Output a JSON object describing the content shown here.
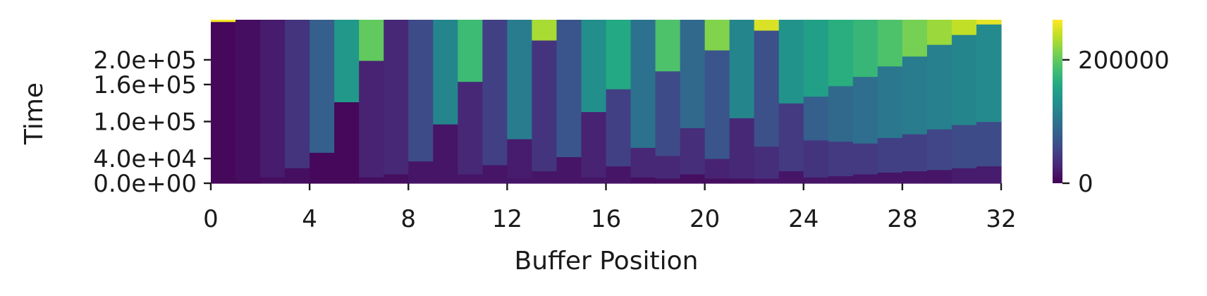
{
  "chart_data": {
    "type": "heatmap",
    "title": "",
    "xlabel": "Buffer Position",
    "ylabel": "Time",
    "x_range": [
      0,
      32
    ],
    "y_range": [
      0,
      265000
    ],
    "x_ticks": [
      0,
      4,
      8,
      12,
      16,
      20,
      24,
      28,
      32
    ],
    "x_tick_labels": [
      "0",
      "4",
      "8",
      "12",
      "16",
      "20",
      "24",
      "28",
      "32"
    ],
    "y_ticks": [
      0,
      40000,
      100000,
      160000,
      200000
    ],
    "y_tick_labels": [
      "0.0e+00",
      "4.0e+04",
      "1.0e+05",
      "1.6e+05",
      "2.0e+05"
    ],
    "colorbar": {
      "colormap": "viridis",
      "range": [
        0,
        265000
      ],
      "ticks": [
        0,
        200000
      ],
      "tick_labels": [
        "0",
        "200000"
      ]
    },
    "grid": false,
    "bands_note": "Each column is a buffer position; segments are [y_start, y_end, value] in data units.",
    "columns": [
      [
        [
          0,
          262000,
          5000
        ],
        [
          262000,
          265000,
          262000
        ]
      ],
      [
        [
          0,
          4000,
          5000
        ],
        [
          4000,
          265000,
          10000
        ]
      ],
      [
        [
          0,
          10000,
          10000
        ],
        [
          10000,
          265000,
          20000
        ]
      ],
      [
        [
          0,
          25000,
          10000
        ],
        [
          25000,
          265000,
          40000
        ]
      ],
      [
        [
          0,
          50000,
          5000
        ],
        [
          50000,
          265000,
          80000
        ]
      ],
      [
        [
          0,
          132000,
          5000
        ],
        [
          132000,
          265000,
          140000
        ]
      ],
      [
        [
          0,
          10000,
          10000
        ],
        [
          10000,
          199000,
          25000
        ],
        [
          199000,
          265000,
          200000
        ]
      ],
      [
        [
          0,
          15000,
          10000
        ],
        [
          15000,
          265000,
          30000
        ]
      ],
      [
        [
          0,
          36000,
          15000
        ],
        [
          36000,
          265000,
          60000
        ]
      ],
      [
        [
          0,
          96000,
          15000
        ],
        [
          96000,
          265000,
          120000
        ]
      ],
      [
        [
          0,
          15000,
          15000
        ],
        [
          15000,
          165000,
          30000
        ],
        [
          165000,
          265000,
          180000
        ]
      ],
      [
        [
          0,
          30000,
          15000
        ],
        [
          30000,
          265000,
          50000
        ]
      ],
      [
        [
          0,
          8000,
          15000
        ],
        [
          8000,
          72000,
          20000
        ],
        [
          72000,
          265000,
          110000
        ]
      ],
      [
        [
          0,
          20000,
          15000
        ],
        [
          20000,
          232000,
          40000
        ],
        [
          232000,
          265000,
          230000
        ]
      ],
      [
        [
          0,
          43000,
          15000
        ],
        [
          43000,
          265000,
          70000
        ]
      ],
      [
        [
          0,
          10000,
          15000
        ],
        [
          10000,
          116000,
          25000
        ],
        [
          116000,
          265000,
          130000
        ]
      ],
      [
        [
          0,
          28000,
          15000
        ],
        [
          28000,
          153000,
          50000
        ],
        [
          153000,
          265000,
          160000
        ]
      ],
      [
        [
          0,
          10000,
          10000
        ],
        [
          10000,
          58000,
          30000
        ],
        [
          58000,
          265000,
          100000
        ]
      ],
      [
        [
          0,
          8000,
          10000
        ],
        [
          8000,
          45000,
          30000
        ],
        [
          45000,
          182000,
          60000
        ],
        [
          182000,
          265000,
          190000
        ]
      ],
      [
        [
          0,
          15000,
          10000
        ],
        [
          15000,
          90000,
          35000
        ],
        [
          90000,
          265000,
          90000
        ]
      ],
      [
        [
          0,
          8000,
          10000
        ],
        [
          8000,
          40000,
          25000
        ],
        [
          40000,
          216000,
          70000
        ],
        [
          216000,
          265000,
          215000
        ]
      ],
      [
        [
          0,
          8000,
          10000
        ],
        [
          8000,
          106000,
          30000
        ],
        [
          106000,
          265000,
          120000
        ]
      ],
      [
        [
          0,
          8000,
          15000
        ],
        [
          8000,
          60000,
          35000
        ],
        [
          60000,
          248000,
          65000
        ],
        [
          248000,
          265000,
          250000
        ]
      ],
      [
        [
          0,
          20000,
          15000
        ],
        [
          20000,
          130000,
          45000
        ],
        [
          130000,
          265000,
          135000
        ]
      ],
      [
        [
          0,
          10000,
          15000
        ],
        [
          10000,
          70000,
          40000
        ],
        [
          70000,
          141000,
          80000
        ],
        [
          141000,
          265000,
          150000
        ]
      ],
      [
        [
          0,
          12000,
          15000
        ],
        [
          12000,
          68000,
          45000
        ],
        [
          68000,
          158000,
          90000
        ],
        [
          158000,
          265000,
          165000
        ]
      ],
      [
        [
          0,
          15000,
          15000
        ],
        [
          15000,
          65000,
          45000
        ],
        [
          65000,
          173000,
          95000
        ],
        [
          173000,
          265000,
          175000
        ]
      ],
      [
        [
          0,
          18000,
          15000
        ],
        [
          18000,
          74000,
          50000
        ],
        [
          74000,
          190000,
          105000
        ],
        [
          190000,
          265000,
          190000
        ]
      ],
      [
        [
          0,
          20000,
          15000
        ],
        [
          20000,
          80000,
          50000
        ],
        [
          80000,
          206000,
          110000
        ],
        [
          206000,
          265000,
          210000
        ]
      ],
      [
        [
          0,
          22000,
          15000
        ],
        [
          22000,
          88000,
          55000
        ],
        [
          88000,
          225000,
          115000
        ],
        [
          225000,
          265000,
          225000
        ]
      ],
      [
        [
          0,
          25000,
          20000
        ],
        [
          25000,
          95000,
          60000
        ],
        [
          95000,
          241000,
          120000
        ],
        [
          241000,
          265000,
          240000
        ]
      ],
      [
        [
          0,
          28000,
          20000
        ],
        [
          28000,
          100000,
          60000
        ],
        [
          100000,
          258000,
          125000
        ],
        [
          258000,
          265000,
          255000
        ]
      ]
    ]
  }
}
